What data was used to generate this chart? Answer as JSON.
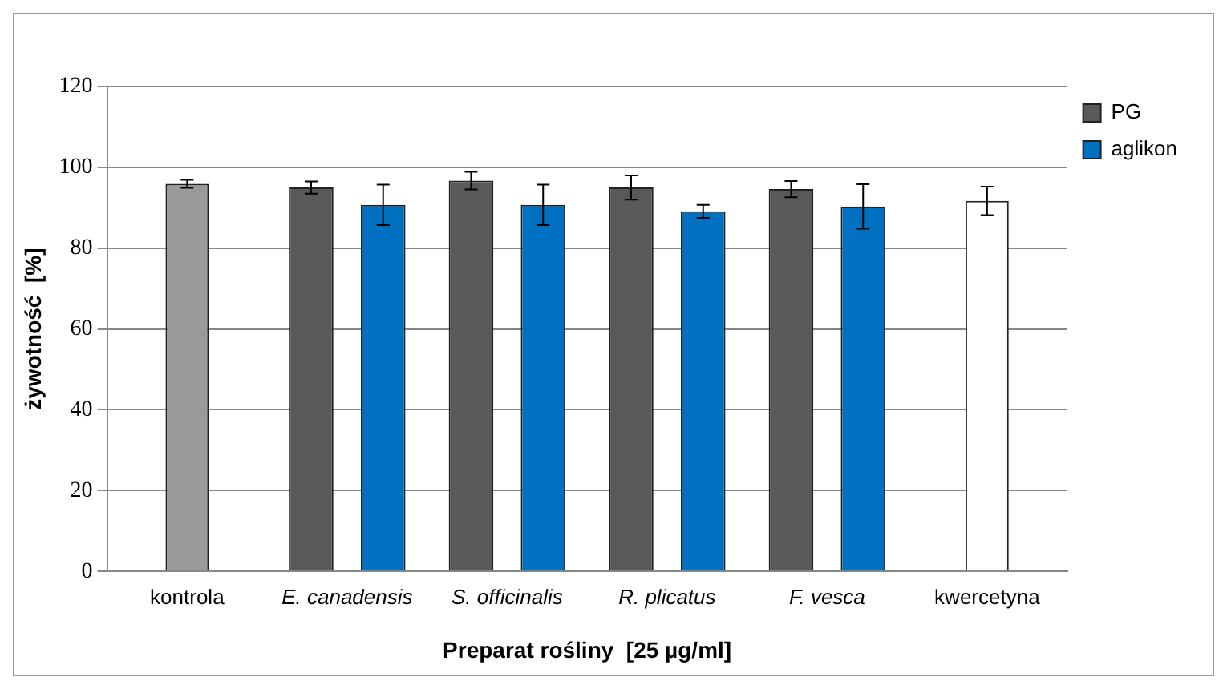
{
  "chart_data": {
    "type": "bar",
    "xlabel": "Preparat rośliny  [25 µg/ml]",
    "ylabel": "żywotność  [%]",
    "categories": [
      "kontrola",
      "E. canadensis",
      "S. officinalis",
      "R. plicatus",
      "F. vesca",
      "kwercetyna"
    ],
    "series": [
      {
        "name": "PG",
        "color": "#595959",
        "values": [
          null,
          95,
          96.7,
          95,
          94.6,
          null
        ],
        "errors": [
          null,
          1.5,
          2.2,
          3,
          2,
          null
        ]
      },
      {
        "name": "aglikon",
        "color": "#0070c0",
        "values": [
          null,
          90.7,
          90.7,
          89.1,
          90.3,
          null
        ],
        "errors": [
          null,
          5,
          5,
          1.6,
          5.5,
          null
        ]
      },
      {
        "colors": [
          "#9a9a9a",
          "#ffffff",
          "#ffffff",
          "#ffffff",
          "#ffffff",
          "#ffffff"
        ],
        "values": [
          95.9,
          null,
          null,
          null,
          null,
          91.7
        ],
        "errors": [
          1,
          null,
          null,
          null,
          null,
          3.5
        ]
      }
    ],
    "ylim": [
      0,
      120
    ],
    "yticks": [
      0,
      20,
      40,
      60,
      80,
      100,
      120
    ],
    "grid": "y",
    "legend": "top right"
  }
}
